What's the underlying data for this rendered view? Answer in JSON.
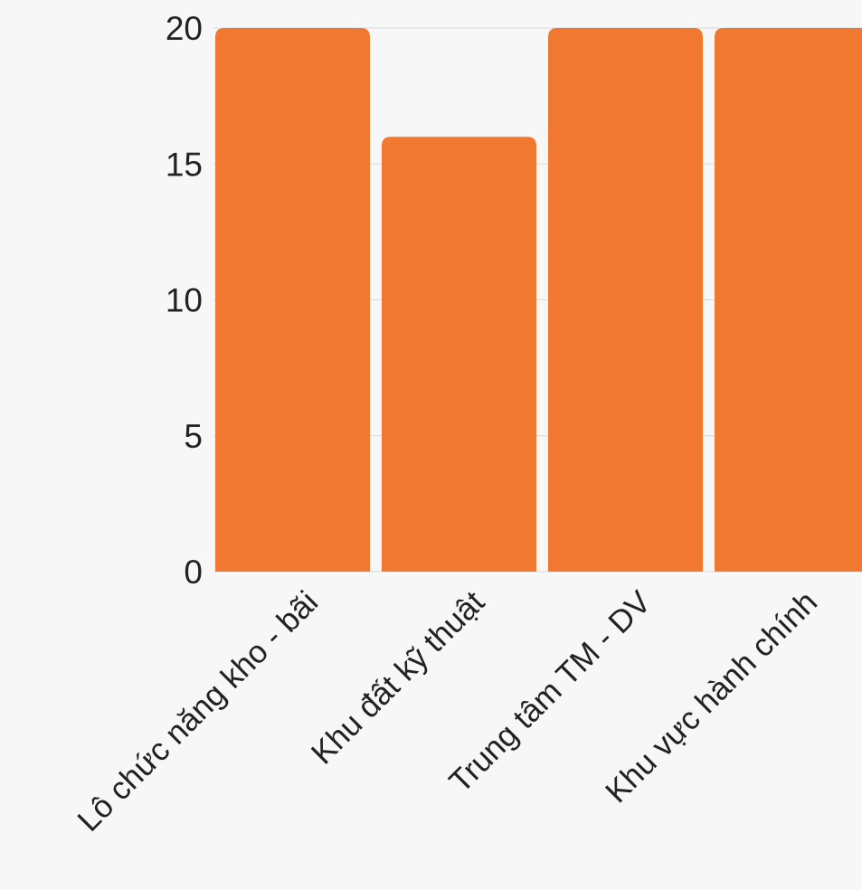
{
  "chart_data": {
    "type": "bar",
    "title": "",
    "xlabel": "",
    "ylabel": "",
    "categories": [
      "Lô chức năng kho - bãi",
      "Khu đất kỹ thuật",
      "Trung tâm TM - DV",
      "Khu vực hành chính"
    ],
    "values": [
      20,
      16,
      20,
      20
    ],
    "ylim": [
      0,
      20
    ],
    "yticks": [
      0,
      5,
      10,
      15,
      20
    ],
    "grid": true,
    "legend": "none",
    "bar_color": "#f07830",
    "background_color": "#f7f7f7"
  }
}
